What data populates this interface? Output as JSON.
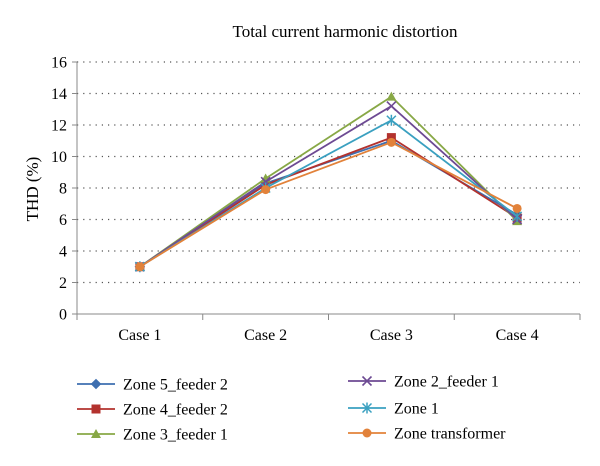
{
  "chart_data": {
    "type": "line",
    "title": "Total current harmonic distortion",
    "xlabel": "",
    "ylabel": "THD (%)",
    "categories": [
      "Case 1",
      "Case 2",
      "Case 3",
      "Case 4"
    ],
    "ylim": [
      0,
      16
    ],
    "yticks": [
      0,
      2,
      4,
      6,
      8,
      10,
      12,
      14,
      16
    ],
    "grid": "horizontal dotted",
    "legend_position": "bottom",
    "series": [
      {
        "name": "Zone 5_feeder 2",
        "marker": "diamond",
        "color": "#3e6fb0",
        "values": [
          3.0,
          8.3,
          11.0,
          6.3
        ]
      },
      {
        "name": "Zone 4_feeder 2",
        "marker": "square",
        "color": "#b3322e",
        "values": [
          3.0,
          8.2,
          11.2,
          6.1
        ]
      },
      {
        "name": "Zone 3_feeder 1",
        "marker": "triangle",
        "color": "#88a846",
        "values": [
          3.0,
          8.6,
          13.8,
          5.9
        ]
      },
      {
        "name": "Zone 2_feeder 1",
        "marker": "x",
        "color": "#6d4a93",
        "values": [
          3.0,
          8.4,
          13.2,
          6.0
        ]
      },
      {
        "name": "Zone 1",
        "marker": "star",
        "color": "#3aa0c0",
        "values": [
          3.0,
          8.0,
          12.3,
          6.2
        ]
      },
      {
        "name": "Zone transformer",
        "marker": "circle",
        "color": "#e2823a",
        "values": [
          3.0,
          7.9,
          10.9,
          6.7
        ]
      }
    ]
  }
}
